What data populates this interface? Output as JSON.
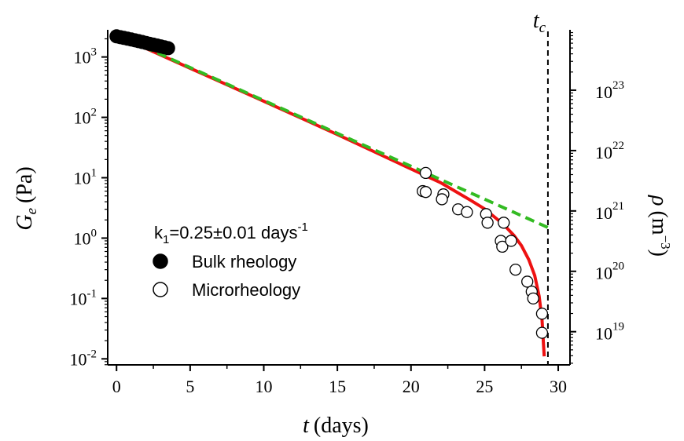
{
  "chart_data": {
    "type": "scatter",
    "x": {
      "label_var": "t",
      "label_unit": "(days)",
      "range": [
        -0.6,
        30.8
      ],
      "ticks": [
        0,
        5,
        10,
        15,
        20,
        25,
        30
      ],
      "tick_labels": [
        "0",
        "5",
        "10",
        "15",
        "20",
        "25",
        "30"
      ]
    },
    "y_left": {
      "label_var": "G",
      "label_sub": "e",
      "label_unit": "(Pa)",
      "scale": "log",
      "range_exp": [
        -2.1,
        3.45
      ],
      "ticks": [
        {
          "exp": 3,
          "base": "10",
          "sup": "3"
        },
        {
          "exp": 2,
          "base": "10",
          "sup": "2"
        },
        {
          "exp": 1,
          "base": "10",
          "sup": "1"
        },
        {
          "exp": 0,
          "base": "10",
          "sup": "0"
        },
        {
          "exp": -1,
          "base": "10",
          "sup": "-1"
        },
        {
          "exp": -2,
          "base": "10",
          "sup": "-2"
        }
      ]
    },
    "y_right": {
      "label_var": "ρ",
      "label_unit": "(m",
      "label_sup": "−3",
      "label_close": ")",
      "scale": "log",
      "range_exp": [
        18.45,
        24.0
      ],
      "ticks": [
        {
          "exp": 23,
          "base": "10",
          "sup": "23"
        },
        {
          "exp": 22,
          "base": "10",
          "sup": "22"
        },
        {
          "exp": 21,
          "base": "10",
          "sup": "21"
        },
        {
          "exp": 20,
          "base": "10",
          "sup": "20"
        },
        {
          "exp": 19,
          "base": "10",
          "sup": "19"
        }
      ]
    },
    "tc": {
      "label_var": "t",
      "label_sub": "c",
      "x": 29.3
    },
    "legend": {
      "position": "center-left",
      "title_main": "k",
      "title_sub": "1",
      "title_rest": "=0.25±0.01 days",
      "title_sup": "-1",
      "entries": [
        {
          "label": "Bulk rheology",
          "marker": "filled-circle"
        },
        {
          "label": "Microrheology",
          "marker": "open-circle"
        }
      ]
    },
    "series": [
      {
        "kind": "bulk_rheology",
        "points": [
          [
            0.0,
            2200
          ],
          [
            0.25,
            2130
          ],
          [
            0.5,
            2070
          ],
          [
            0.75,
            2010
          ],
          [
            1.0,
            1950
          ],
          [
            1.25,
            1890
          ],
          [
            1.5,
            1830
          ],
          [
            1.75,
            1770
          ],
          [
            2.0,
            1710
          ],
          [
            2.25,
            1650
          ],
          [
            2.5,
            1600
          ],
          [
            2.75,
            1550
          ],
          [
            3.0,
            1500
          ],
          [
            3.25,
            1450
          ],
          [
            3.5,
            1400
          ]
        ]
      },
      {
        "kind": "microrheology",
        "points": [
          [
            21.0,
            12
          ],
          [
            20.8,
            6.0
          ],
          [
            21.0,
            5.8
          ],
          [
            22.2,
            5.3
          ],
          [
            22.1,
            4.4
          ],
          [
            23.2,
            3.0
          ],
          [
            23.8,
            2.7
          ],
          [
            25.1,
            2.5
          ],
          [
            25.2,
            1.8
          ],
          [
            26.3,
            1.8
          ],
          [
            26.1,
            0.9
          ],
          [
            26.2,
            0.72
          ],
          [
            26.8,
            0.9
          ],
          [
            27.1,
            0.3
          ],
          [
            27.9,
            0.19
          ],
          [
            28.2,
            0.13
          ],
          [
            28.3,
            0.1
          ],
          [
            28.9,
            0.056
          ],
          [
            28.9,
            0.027
          ]
        ]
      },
      {
        "kind": "fit_red",
        "color": "#ee1111",
        "style": "solid",
        "points": [
          [
            0,
            2300
          ],
          [
            5,
            650
          ],
          [
            10,
            185
          ],
          [
            15,
            52
          ],
          [
            20,
            14
          ],
          [
            22,
            8.3
          ],
          [
            24,
            4.3
          ],
          [
            25,
            3.05
          ],
          [
            26,
            1.92
          ],
          [
            26.5,
            1.48
          ],
          [
            27,
            1.1
          ],
          [
            27.5,
            0.75
          ],
          [
            28,
            0.44
          ],
          [
            28.4,
            0.24
          ],
          [
            28.7,
            0.11
          ],
          [
            28.9,
            0.045
          ],
          [
            29.05,
            0.011
          ]
        ]
      },
      {
        "kind": "fit_green",
        "color": "#33bb22",
        "style": "dashed",
        "points": [
          [
            0,
            2350
          ],
          [
            29.3,
            1.5
          ]
        ]
      }
    ]
  }
}
